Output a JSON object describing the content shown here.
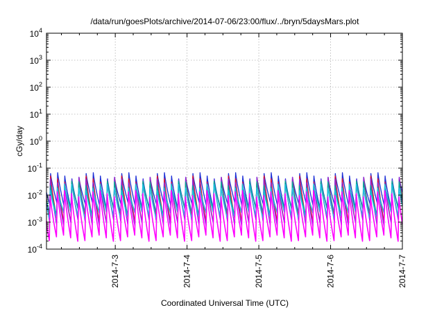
{
  "chart_data": {
    "type": "line",
    "title": "/data/run/goesPlots/archive/2014-07-06/23:00/flux/../bryn/5daysMars.plot",
    "xlabel": "Coordinated Universal Time (UTC)",
    "ylabel": "cGy/day",
    "yscale": "log",
    "ylim": [
      0.0001,
      10000
    ],
    "y_ticks": [
      {
        "base": "10",
        "exp": "-4"
      },
      {
        "base": "10",
        "exp": "-3"
      },
      {
        "base": "10",
        "exp": "-2"
      },
      {
        "base": "10",
        "exp": "-1"
      },
      {
        "base": "10",
        "exp": "0"
      },
      {
        "base": "10",
        "exp": "1"
      },
      {
        "base": "10",
        "exp": "2"
      },
      {
        "base": "10",
        "exp": "3"
      },
      {
        "base": "10",
        "exp": "4"
      }
    ],
    "xlim": [
      "2014-07-02 01:00",
      "2014-07-07 00:00"
    ],
    "x_ticks": [
      "2014-7-3",
      "2014-7-4",
      "2014-7-5",
      "2014-7-6",
      "2014-7-7"
    ],
    "grid": true,
    "legend": "none",
    "pattern": {
      "description": "sawtooth: sharp rise to peak then decay to trough, about 50 cycles over 5 days",
      "cycles": 50,
      "start_phase": 0.55
    },
    "series": [
      {
        "color": "#1c2fd6",
        "peak": 0.055,
        "trough": 0.004
      },
      {
        "color": "#e01030",
        "peak": 0.045,
        "trough": 0.0012
      },
      {
        "color": "#8b2be2",
        "peak": 0.035,
        "trough": 0.0009
      },
      {
        "color": "#0aa898",
        "peak": 0.028,
        "trough": 0.0025
      },
      {
        "color": "#1fc0e0",
        "peak": 0.022,
        "trough": 0.0018
      },
      {
        "color": "#ff00ff",
        "peak": 0.012,
        "trough": 0.00025
      }
    ]
  }
}
